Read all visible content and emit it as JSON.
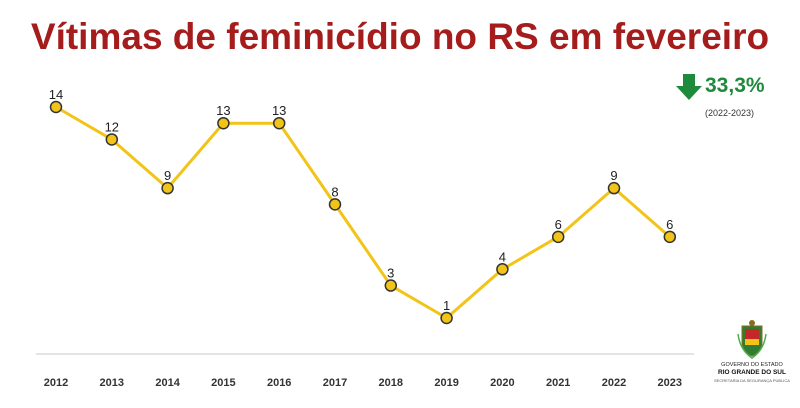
{
  "header": {
    "title": "Vítimas de feminicídio no RS em fevereiro"
  },
  "change": {
    "value": "33,3%",
    "period": "(2022-2023)",
    "direction": "down",
    "color": "#1f8a3b"
  },
  "logo": {
    "line1": "GOVERNO DO ESTADO",
    "line2": "RIO GRANDE DO SUL",
    "line3": "SECRETARIA DA SEGURANÇA PÚBLICA"
  },
  "chart_data": {
    "type": "line",
    "title": "Vítimas de feminicídio no RS em fevereiro",
    "xlabel": "",
    "ylabel": "",
    "categories": [
      "2012",
      "2013",
      "2014",
      "2015",
      "2016",
      "2017",
      "2018",
      "2019",
      "2020",
      "2021",
      "2022",
      "2023"
    ],
    "series": [
      {
        "values": [
          14,
          12,
          9,
          13,
          13,
          8,
          3,
          1,
          4,
          6,
          9,
          6
        ],
        "color": "#f2c418"
      }
    ],
    "ylim": [
      0,
      14
    ],
    "grid": false,
    "legend": "none",
    "data_labels": true
  }
}
